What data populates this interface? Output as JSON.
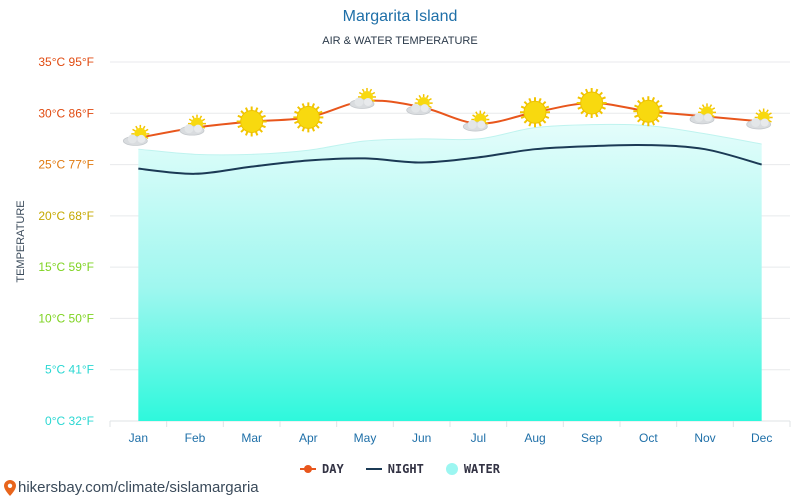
{
  "title": "Margarita Island",
  "subtitle": "AIR & WATER TEMPERATURE",
  "footer_url": "hikersbay.com/climate/sislamargaria",
  "colors": {
    "day": "#e8561c",
    "night": "#1b3a55",
    "water": "#9cf6f1",
    "title": "#1e6fa8"
  },
  "legend": {
    "day": "DAY",
    "night": "NIGHT",
    "water": "WATER"
  },
  "chart_data": {
    "type": "line",
    "title": "Margarita Island",
    "subtitle": "AIR & WATER TEMPERATURE",
    "ylabel": "TEMPERATURE",
    "ylim": [
      0,
      35
    ],
    "yticks": [
      0,
      5,
      10,
      15,
      20,
      25,
      30,
      35
    ],
    "ytick_labels": [
      "0°C 32°F",
      "5°C 41°F",
      "10°C 50°F",
      "15°C 59°F",
      "20°C 68°F",
      "25°C 77°F",
      "30°C 86°F",
      "35°C 95°F"
    ],
    "ytick_colors": [
      "#2ad7d2",
      "#2ad7d2",
      "#7ed321",
      "#7ed321",
      "#c4a800",
      "#e07a10",
      "#e04a10",
      "#e04a10"
    ],
    "grid": true,
    "legend_position": "bottom-center",
    "categories": [
      "Jan",
      "Feb",
      "Mar",
      "Apr",
      "May",
      "Jun",
      "Jul",
      "Aug",
      "Sep",
      "Oct",
      "Nov",
      "Dec"
    ],
    "series": [
      {
        "name": "DAY",
        "values": [
          27.6,
          28.6,
          29.2,
          29.6,
          31.2,
          30.6,
          29.0,
          30.1,
          31.0,
          30.2,
          29.7,
          29.2
        ]
      },
      {
        "name": "NIGHT",
        "values": [
          24.6,
          24.1,
          24.8,
          25.4,
          25.6,
          25.2,
          25.7,
          26.5,
          26.8,
          26.9,
          26.5,
          25.0
        ]
      },
      {
        "name": "WATER",
        "values": [
          26.5,
          26.0,
          26.0,
          26.4,
          27.3,
          27.5,
          27.5,
          28.6,
          28.9,
          28.8,
          28.0,
          27.0
        ]
      }
    ],
    "weather_icons": [
      "partly-cloudy-icon",
      "partly-cloudy-icon",
      "sun-icon",
      "sun-icon",
      "partly-cloudy-icon",
      "partly-cloudy-icon",
      "partly-cloudy-icon",
      "sun-icon",
      "sun-icon",
      "sun-icon",
      "partly-cloudy-icon",
      "partly-cloudy-icon"
    ]
  }
}
